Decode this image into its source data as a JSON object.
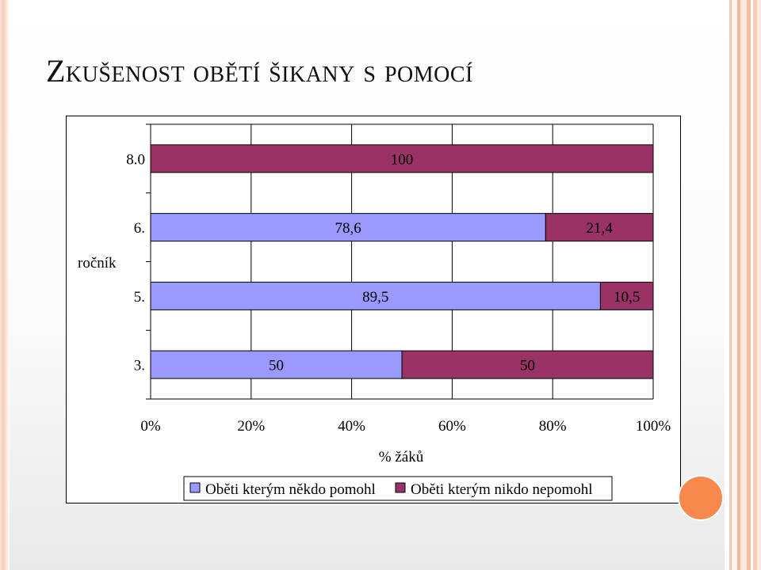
{
  "slide": {
    "title": "Zkušenost obětí šikany s pomocí",
    "colors": {
      "accent": "#f7894d",
      "stripe": "#f5cab5"
    }
  },
  "chart_data": {
    "type": "bar",
    "orientation": "horizontal",
    "stacked": "percent",
    "categories": [
      "8.0",
      "6.",
      "5.",
      "3."
    ],
    "series": [
      {
        "name": "Oběti kterým někdo pomohl",
        "values": [
          null,
          78.6,
          89.5,
          50
        ],
        "labels": [
          "",
          "78,6",
          "89,5",
          "50"
        ],
        "color": "#9999ff"
      },
      {
        "name": "Oběti kterým nikdo nepomohl",
        "values": [
          100,
          21.4,
          10.5,
          50
        ],
        "labels": [
          "100",
          "21,4",
          "10,5",
          "50"
        ],
        "color": "#993366"
      }
    ],
    "xticks": [
      "0%",
      "20%",
      "40%",
      "60%",
      "80%",
      "100%"
    ],
    "xlim": [
      0,
      100
    ],
    "xlabel": "% žáků",
    "ylabel": "ročník",
    "grid": true,
    "legend": "bottom"
  }
}
